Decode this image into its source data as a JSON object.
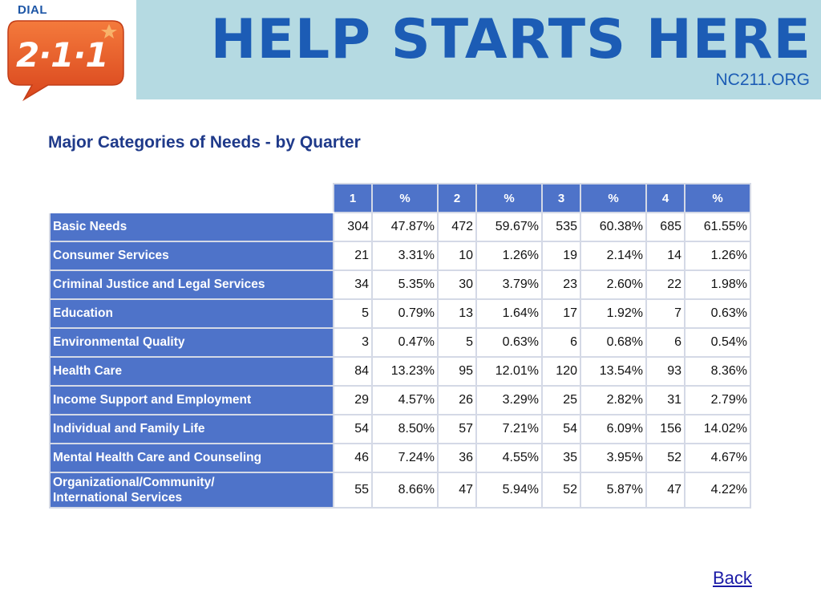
{
  "logo": {
    "dial_text": "DIAL",
    "number_text": "2·1·1"
  },
  "banner": {
    "title": "HELP STARTS HERE",
    "url": "NC211.ORG"
  },
  "page_title": "Major Categories of Needs - by Quarter",
  "table": {
    "headers": [
      "1",
      "%",
      "2",
      "%",
      "3",
      "%",
      "4",
      "%"
    ],
    "rows": [
      {
        "label": "Basic Needs",
        "values": [
          "304",
          "47.87%",
          "472",
          "59.67%",
          "535",
          "60.38%",
          "685",
          "61.55%"
        ]
      },
      {
        "label": "Consumer Services",
        "values": [
          "21",
          "3.31%",
          "10",
          "1.26%",
          "19",
          "2.14%",
          "14",
          "1.26%"
        ]
      },
      {
        "label": "Criminal Justice and Legal Services",
        "values": [
          "34",
          "5.35%",
          "30",
          "3.79%",
          "23",
          "2.60%",
          "22",
          "1.98%"
        ]
      },
      {
        "label": "Education",
        "values": [
          "5",
          "0.79%",
          "13",
          "1.64%",
          "17",
          "1.92%",
          "7",
          "0.63%"
        ]
      },
      {
        "label": "Environmental Quality",
        "values": [
          "3",
          "0.47%",
          "5",
          "0.63%",
          "6",
          "0.68%",
          "6",
          "0.54%"
        ]
      },
      {
        "label": "Health Care",
        "values": [
          "84",
          "13.23%",
          "95",
          "12.01%",
          "120",
          "13.54%",
          "93",
          "8.36%"
        ]
      },
      {
        "label": "Income Support and Employment",
        "values": [
          "29",
          "4.57%",
          "26",
          "3.29%",
          "25",
          "2.82%",
          "31",
          "2.79%"
        ]
      },
      {
        "label": "Individual and Family Life",
        "values": [
          "54",
          "8.50%",
          "57",
          "7.21%",
          "54",
          "6.09%",
          "156",
          "14.02%"
        ]
      },
      {
        "label": "Mental Health Care and Counseling",
        "values": [
          "46",
          "7.24%",
          "36",
          "4.55%",
          "35",
          "3.95%",
          "52",
          "4.67%"
        ]
      },
      {
        "label_lines": [
          "Organizational/Community/",
          "International Services"
        ],
        "values": [
          "55",
          "8.66%",
          "47",
          "5.94%",
          "52",
          "5.87%",
          "47",
          "4.22%"
        ]
      }
    ]
  },
  "back_link": "Back",
  "colors": {
    "banner_bg": "#b5dae2",
    "banner_text": "#1c5cb5",
    "table_header_bg": "#4e73c9",
    "title_text": "#1f3a8a",
    "logo_orange": "#e8542a"
  }
}
